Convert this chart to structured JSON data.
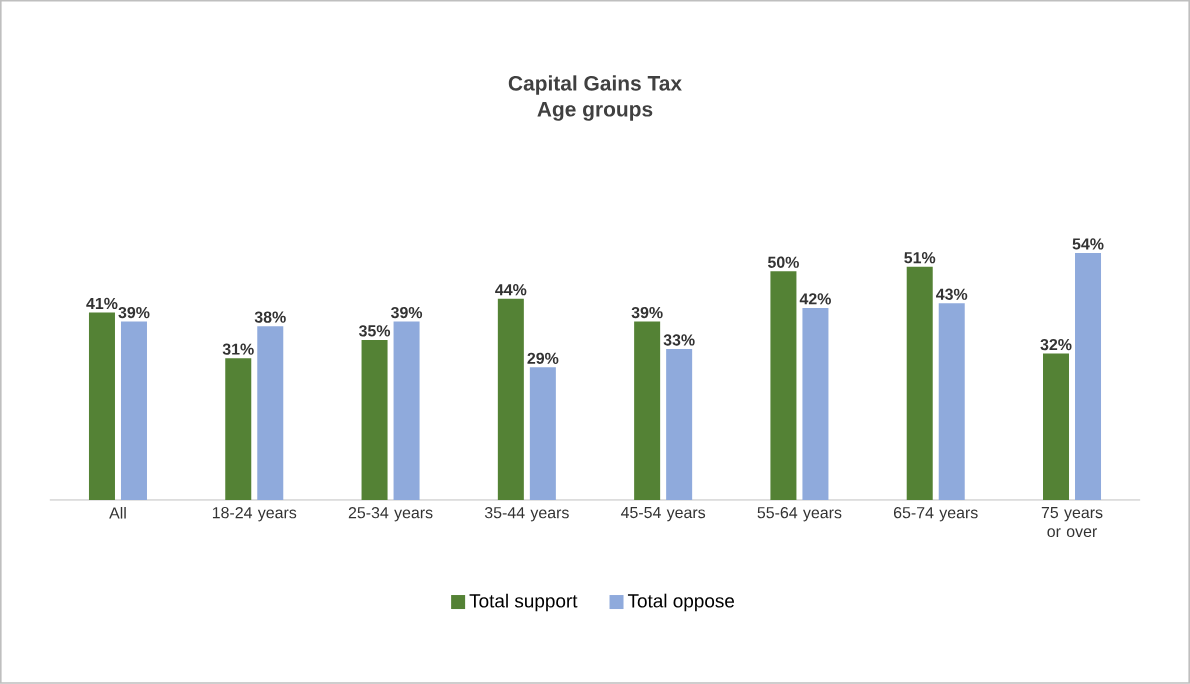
{
  "chart_data": {
    "type": "bar",
    "title": "Capital Gains Tax",
    "subtitle": "Age groups",
    "categories": [
      "All",
      "18-24 years",
      "25-34 years",
      "35-44 years",
      "45-54 years",
      "55-64 years",
      "65-74 years",
      "75 years or over"
    ],
    "series": [
      {
        "name": "Total support",
        "color": "#548235",
        "values": [
          41,
          31,
          35,
          44,
          39,
          50,
          51,
          32
        ],
        "value_labels": [
          "41%",
          "31%",
          "35%",
          "44%",
          "39%",
          "50%",
          "51%",
          "32%"
        ]
      },
      {
        "name": "Total oppose",
        "color": "#8faadc",
        "values": [
          39,
          38,
          39,
          29,
          33,
          42,
          43,
          54
        ],
        "value_labels": [
          "39%",
          "38%",
          "39%",
          "29%",
          "33%",
          "42%",
          "43%",
          "54%"
        ]
      }
    ],
    "legend": "bottom"
  }
}
